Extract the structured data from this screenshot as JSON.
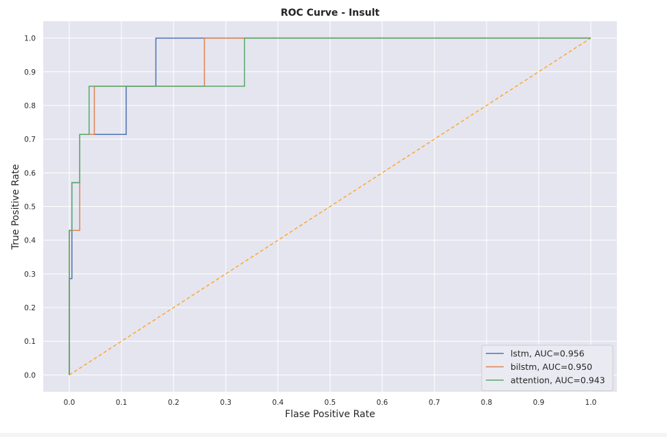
{
  "chart_data": {
    "type": "line",
    "title": "ROC Curve - Insult",
    "xlabel": "Flase Positive Rate",
    "ylabel": "True Positive Rate",
    "xlim": [
      -0.05,
      1.05
    ],
    "ylim": [
      -0.05,
      1.05
    ],
    "x_ticks": [
      0.0,
      0.1,
      0.2,
      0.3,
      0.4,
      0.5,
      0.6,
      0.7,
      0.8,
      0.9,
      1.0
    ],
    "y_ticks": [
      0.0,
      0.1,
      0.2,
      0.3,
      0.4,
      0.5,
      0.6,
      0.7,
      0.8,
      0.9,
      1.0
    ],
    "x_tick_labels": [
      "0.0",
      "0.1",
      "0.2",
      "0.3",
      "0.4",
      "0.5",
      "0.6",
      "0.7",
      "0.8",
      "0.9",
      "1.0"
    ],
    "y_tick_labels": [
      "0.0",
      "0.1",
      "0.2",
      "0.3",
      "0.4",
      "0.5",
      "0.6",
      "0.7",
      "0.8",
      "0.9",
      "1.0"
    ],
    "grid": true,
    "background": "#e5e5ef",
    "legend_position": "lower right",
    "series": [
      {
        "name": "lstm, AUC=0.956",
        "color": "#4c72b0",
        "style": "step",
        "x": [
          0.0,
          0.0,
          0.005,
          0.005,
          0.02,
          0.02,
          0.109,
          0.109,
          0.166,
          0.166,
          1.0
        ],
        "y": [
          0.0,
          0.286,
          0.286,
          0.571,
          0.571,
          0.714,
          0.714,
          0.857,
          0.857,
          1.0,
          1.0
        ]
      },
      {
        "name": "bilstm, AUC=0.950",
        "color": "#dd8452",
        "style": "step",
        "x": [
          0.0,
          0.0,
          0.02,
          0.02,
          0.048,
          0.048,
          0.259,
          0.259,
          1.0
        ],
        "y": [
          0.0,
          0.429,
          0.429,
          0.714,
          0.714,
          0.857,
          0.857,
          1.0,
          1.0
        ]
      },
      {
        "name": "attention, AUC=0.943",
        "color": "#55a868",
        "style": "step",
        "x": [
          0.0,
          0.0,
          0.005,
          0.005,
          0.02,
          0.02,
          0.038,
          0.038,
          0.336,
          0.336,
          1.0
        ],
        "y": [
          0.0,
          0.429,
          0.429,
          0.571,
          0.571,
          0.714,
          0.714,
          0.857,
          0.857,
          1.0,
          1.0
        ]
      },
      {
        "color": "#ffa52a",
        "style": "dashed",
        "x": [
          0.0,
          1.0
        ],
        "y": [
          0.0,
          1.0
        ]
      }
    ]
  }
}
